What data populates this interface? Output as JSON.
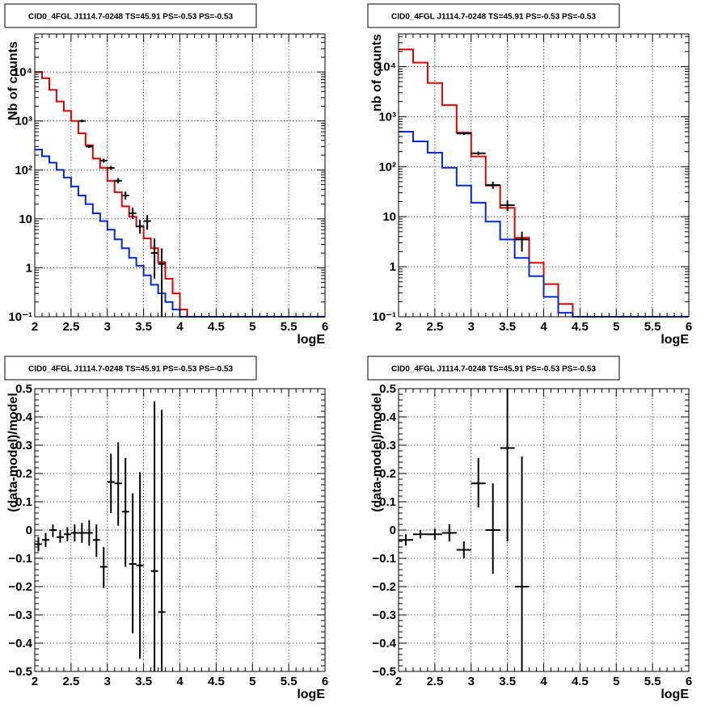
{
  "chart_data": [
    {
      "id": "spectrum-fine",
      "type": "histogram-log",
      "title": "CID0_4FGL J1114.7-0248 TS=45.91 PS=-0.53 PS=-0.53",
      "xlabel": "logE",
      "ylabel": "Nb of counts",
      "xlim": [
        2,
        6
      ],
      "ylim": [
        0.1,
        60000
      ],
      "yscale": "log",
      "grid": true,
      "xticks": [
        2,
        2.5,
        3,
        3.5,
        4,
        4.5,
        5,
        5.5,
        6
      ],
      "xtick_labels": [
        "2",
        "2.5",
        "3",
        "3.5",
        "4",
        "4.5",
        "5",
        "5.5",
        "6"
      ],
      "yticks": [
        0.1,
        1,
        10,
        100,
        1000,
        10000
      ],
      "ytick_labels": [
        "10⁻¹",
        "1",
        "10",
        "10²",
        "10³",
        "10⁴"
      ],
      "bin_edges": [
        2.0,
        2.1,
        2.2,
        2.3,
        2.4,
        2.5,
        2.6,
        2.7,
        2.8,
        2.9,
        3.0,
        3.1,
        3.2,
        3.3,
        3.4,
        3.5,
        3.6,
        3.7,
        3.8,
        3.9,
        4.0,
        4.1,
        4.2,
        4.3,
        4.4,
        4.5,
        4.6,
        4.7,
        4.8,
        4.9,
        5.0,
        5.1,
        5.2,
        5.3,
        5.4,
        5.5,
        5.6,
        5.7,
        5.8,
        5.9,
        6.0
      ],
      "series": [
        {
          "role": "total-model",
          "color": "#e00000",
          "values": [
            10000,
            7500,
            4300,
            2500,
            1600,
            1000,
            560,
            320,
            170,
            110,
            60,
            35,
            18,
            11,
            7,
            4,
            2.5,
            1.3,
            0.6,
            0.3,
            0.14,
            0.1,
            0.1,
            0.1,
            0.1,
            0.1,
            0.1,
            0.1,
            0.1,
            0.1,
            0.1,
            0.1,
            0.1,
            0.1,
            0.1,
            0.1,
            0.1,
            0.1,
            0.1,
            0.1
          ]
        },
        {
          "role": "background-model",
          "color": "#0026d9",
          "values": [
            260,
            190,
            140,
            100,
            70,
            46,
            30,
            20,
            13,
            9,
            6,
            3.8,
            2.5,
            1.6,
            1.1,
            0.7,
            0.45,
            0.3,
            0.2,
            0.14,
            0.1,
            0.1,
            0.1,
            0.1,
            0.1,
            0.1,
            0.1,
            0.1,
            0.1,
            0.1,
            0.1,
            0.1,
            0.1,
            0.1,
            0.1,
            0.1,
            0.1,
            0.1,
            0.1,
            0.1
          ]
        }
      ],
      "points": [
        {
          "x": 2.65,
          "y": 1000,
          "lo": 940,
          "hi": 1060
        },
        {
          "x": 2.75,
          "y": 300,
          "lo": 280,
          "hi": 320
        },
        {
          "x": 2.95,
          "y": 155,
          "lo": 140,
          "hi": 170
        },
        {
          "x": 3.05,
          "y": 110,
          "lo": 100,
          "hi": 120
        },
        {
          "x": 3.15,
          "y": 60,
          "lo": 53,
          "hi": 68
        },
        {
          "x": 3.25,
          "y": 30,
          "lo": 25,
          "hi": 36
        },
        {
          "x": 3.35,
          "y": 13,
          "lo": 10,
          "hi": 17
        },
        {
          "x": 3.45,
          "y": 7,
          "lo": 5,
          "hi": 9.5
        },
        {
          "x": 3.55,
          "y": 9,
          "lo": 6,
          "hi": 12
        },
        {
          "x": 3.65,
          "y": 2,
          "lo": 0.6,
          "hi": 4
        },
        {
          "x": 3.75,
          "y": 1.2,
          "lo": 0.1,
          "hi": 2.5
        }
      ]
    },
    {
      "id": "spectrum-coarse",
      "type": "histogram-log",
      "title": "CID0_4FGL J1114.7-0248 TS=45.91 PS=-0.53 PS=-0.53",
      "xlabel": "logE",
      "ylabel": "nb of counts",
      "xlim": [
        2,
        6
      ],
      "ylim": [
        0.1,
        45000
      ],
      "yscale": "log",
      "grid": true,
      "xticks": [
        2,
        2.5,
        3,
        3.5,
        4,
        4.5,
        5,
        5.5,
        6
      ],
      "xtick_labels": [
        "2",
        "2.5",
        "3",
        "3.5",
        "4",
        "4.5",
        "5",
        "5.5",
        "6"
      ],
      "yticks": [
        0.1,
        1,
        10,
        100,
        1000,
        10000
      ],
      "ytick_labels": [
        "10⁻¹",
        "1",
        "10",
        "10²",
        "10³",
        "10⁴"
      ],
      "bin_edges": [
        2.0,
        2.2,
        2.4,
        2.6,
        2.8,
        3.0,
        3.2,
        3.4,
        3.6,
        3.8,
        4.0,
        4.2,
        4.4,
        4.6,
        4.8,
        5.0,
        5.2,
        5.4,
        5.6,
        5.8,
        6.0
      ],
      "series": [
        {
          "role": "total-model",
          "color": "#e00000",
          "values": [
            22000,
            12000,
            4700,
            1700,
            480,
            160,
            42,
            15,
            3.8,
            1.2,
            0.45,
            0.18,
            0.1,
            0.1,
            0.1,
            0.1,
            0.1,
            0.1,
            0.1,
            0.1
          ]
        },
        {
          "role": "background-model",
          "color": "#0026d9",
          "values": [
            500,
            320,
            190,
            95,
            42,
            19,
            8,
            3.5,
            1.5,
            0.65,
            0.25,
            0.12,
            0.1,
            0.1,
            0.1,
            0.1,
            0.1,
            0.1,
            0.1,
            0.1
          ]
        }
      ],
      "points": [
        {
          "x": 2.9,
          "y": 460,
          "lo": 430,
          "hi": 490
        },
        {
          "x": 3.1,
          "y": 185,
          "lo": 170,
          "hi": 200
        },
        {
          "x": 3.3,
          "y": 43,
          "lo": 36,
          "hi": 50
        },
        {
          "x": 3.5,
          "y": 17,
          "lo": 13,
          "hi": 21
        },
        {
          "x": 3.7,
          "y": 3.5,
          "lo": 2,
          "hi": 5
        }
      ]
    },
    {
      "id": "residuals-fine",
      "type": "scatter-errorbars",
      "title": "CID0_4FGL J1114.7-0248 TS=45.91 PS=-0.53 PS=-0.53",
      "xlabel": "logE",
      "ylabel": "(data-model)/model",
      "xlim": [
        2,
        6
      ],
      "ylim": [
        -0.5,
        0.5
      ],
      "grid": true,
      "xticks": [
        2,
        2.5,
        3,
        3.5,
        4,
        4.5,
        5,
        5.5,
        6
      ],
      "xtick_labels": [
        "2",
        "2.5",
        "3",
        "3.5",
        "4",
        "4.5",
        "5",
        "5.5",
        "6"
      ],
      "yticks": [
        -0.5,
        -0.4,
        -0.3,
        -0.2,
        -0.1,
        0,
        0.1,
        0.2,
        0.3,
        0.4,
        0.5
      ],
      "ytick_labels": [
        "−0.5",
        "−0.4",
        "−0.3",
        "−0.2",
        "−0.1",
        "0",
        "0.1",
        "0.2",
        "0.3",
        "0.4",
        "0.5"
      ],
      "bin_width": 0.1,
      "points": [
        {
          "x": 2.05,
          "y": -0.05,
          "lo": -0.075,
          "hi": -0.025
        },
        {
          "x": 2.15,
          "y": -0.035,
          "lo": -0.06,
          "hi": -0.01
        },
        {
          "x": 2.25,
          "y": 0.0,
          "lo": -0.025,
          "hi": 0.02
        },
        {
          "x": 2.35,
          "y": -0.025,
          "lo": -0.045,
          "hi": 0.0
        },
        {
          "x": 2.45,
          "y": -0.015,
          "lo": -0.04,
          "hi": 0.01
        },
        {
          "x": 2.55,
          "y": -0.01,
          "lo": -0.04,
          "hi": 0.02
        },
        {
          "x": 2.65,
          "y": -0.01,
          "lo": -0.045,
          "hi": 0.025
        },
        {
          "x": 2.75,
          "y": -0.01,
          "lo": -0.055,
          "hi": 0.035
        },
        {
          "x": 2.85,
          "y": -0.035,
          "lo": -0.095,
          "hi": 0.02
        },
        {
          "x": 2.95,
          "y": -0.13,
          "lo": -0.205,
          "hi": -0.06
        },
        {
          "x": 3.05,
          "y": 0.17,
          "lo": 0.06,
          "hi": 0.27
        },
        {
          "x": 3.15,
          "y": 0.165,
          "lo": 0.015,
          "hi": 0.31
        },
        {
          "x": 3.25,
          "y": 0.065,
          "lo": -0.13,
          "hi": 0.255
        },
        {
          "x": 3.35,
          "y": -0.12,
          "lo": -0.365,
          "hi": 0.13
        },
        {
          "x": 3.45,
          "y": -0.125,
          "lo": -0.455,
          "hi": 0.205
        },
        {
          "x": 3.65,
          "y": -0.145,
          "lo": -0.5,
          "hi": 0.455
        },
        {
          "x": 3.75,
          "y": -0.29,
          "lo": -0.5,
          "hi": 0.425
        }
      ]
    },
    {
      "id": "residuals-coarse",
      "type": "scatter-errorbars",
      "title": "CID0_4FGL J1114.7-0248 TS=45.91 PS=-0.53 PS=-0.53",
      "xlabel": "logE",
      "ylabel": "(data-model)/model",
      "xlim": [
        2,
        6
      ],
      "ylim": [
        -0.5,
        0.5
      ],
      "grid": true,
      "xticks": [
        2,
        2.5,
        3,
        3.5,
        4,
        4.5,
        5,
        5.5,
        6
      ],
      "xtick_labels": [
        "2",
        "2.5",
        "3",
        "3.5",
        "4",
        "4.5",
        "5",
        "5.5",
        "6"
      ],
      "yticks": [
        -0.5,
        -0.4,
        -0.3,
        -0.2,
        -0.1,
        0,
        0.1,
        0.2,
        0.3,
        0.4,
        0.5
      ],
      "ytick_labels": [
        "−0.5",
        "−0.4",
        "−0.3",
        "−0.2",
        "−0.1",
        "0",
        "0.1",
        "0.2",
        "0.3",
        "0.4",
        "0.5"
      ],
      "bin_width": 0.2,
      "points": [
        {
          "x": 2.1,
          "y": -0.035,
          "lo": -0.055,
          "hi": -0.015
        },
        {
          "x": 2.3,
          "y": -0.015,
          "lo": -0.03,
          "hi": 0.0
        },
        {
          "x": 2.5,
          "y": -0.015,
          "lo": -0.035,
          "hi": 0.005
        },
        {
          "x": 2.7,
          "y": -0.01,
          "lo": -0.04,
          "hi": 0.02
        },
        {
          "x": 2.9,
          "y": -0.07,
          "lo": -0.1,
          "hi": -0.04
        },
        {
          "x": 3.1,
          "y": 0.165,
          "lo": 0.08,
          "hi": 0.255
        },
        {
          "x": 3.3,
          "y": 0.0,
          "lo": -0.155,
          "hi": 0.165
        },
        {
          "x": 3.5,
          "y": 0.29,
          "lo": -0.04,
          "hi": 0.5
        },
        {
          "x": 3.7,
          "y": -0.2,
          "lo": -0.5,
          "hi": 0.26
        }
      ]
    }
  ]
}
